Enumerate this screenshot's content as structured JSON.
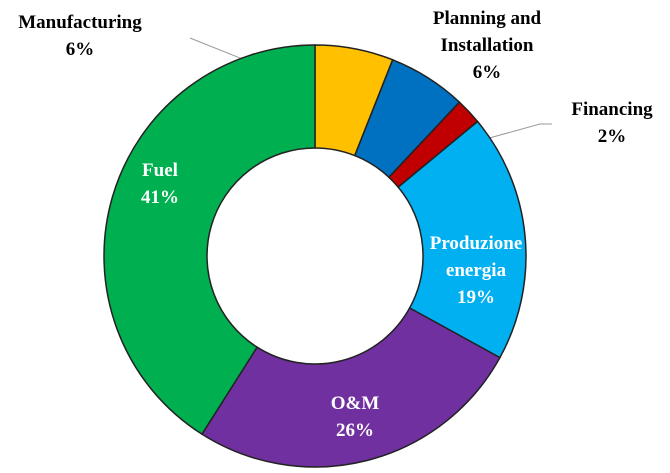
{
  "chart_data": {
    "type": "donut",
    "categories": [
      "Manufacturing",
      "Planning and Installation",
      "Financing",
      "Produzione energia",
      "O&M",
      "Fuel"
    ],
    "values": [
      6,
      6,
      2,
      19,
      26,
      41
    ],
    "value_labels": [
      "6%",
      "6%",
      "2%",
      "19%",
      "26%",
      "41%"
    ],
    "colors": [
      "#ffc000",
      "#0070c0",
      "#c00000",
      "#00b0f0",
      "#7030a0",
      "#00b050"
    ]
  }
}
